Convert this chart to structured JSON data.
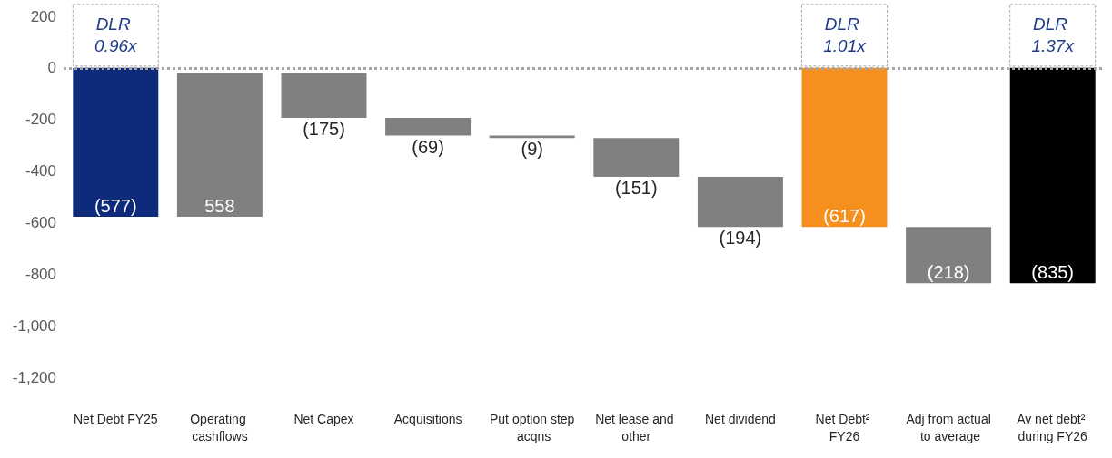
{
  "chart_data": {
    "type": "bar",
    "categories": [
      "Net Debt FY25",
      "Operating cashflows",
      "Net Capex",
      "Acquisitions",
      "Put option step acqns",
      "Net lease and other",
      "Net dividend",
      "Net Debt² FY26",
      "Adj from actual to average",
      "Av net debt² during FY26"
    ],
    "values": [
      -577,
      558,
      -175,
      -69,
      -9,
      -151,
      -194,
      -617,
      -218,
      -835
    ],
    "base": [
      0,
      -577,
      -19,
      -194,
      -263,
      -272,
      -423,
      0,
      -617,
      0
    ],
    "colors": [
      "#0d2b7a",
      "#808080",
      "#808080",
      "#808080",
      "#808080",
      "#808080",
      "#808080",
      "#f5901e",
      "#808080",
      "#000000"
    ],
    "value_labels": [
      "(577)",
      "558",
      "(175)",
      "(69)",
      "(9)",
      "(151)",
      "(194)",
      "(617)",
      "(218)",
      "(835)"
    ],
    "ylim": [
      -1200,
      200
    ],
    "yticks": [
      200,
      0,
      -200,
      -400,
      -600,
      -800,
      {
        "value": -1000,
        "label": "-1,000"
      },
      {
        "value": -1200,
        "label": "-1,200"
      }
    ],
    "ref_lines": [
      {
        "axis": "y",
        "value": 0,
        "color": "#a6a6a6",
        "line_style": "dotted"
      }
    ],
    "annotations": [
      {
        "text": "DLR 0.96x",
        "x": "Net Debt FY25",
        "y": 0
      },
      {
        "text": "DLR 1.01x",
        "x": "Net Debt² FY26",
        "y": 0
      },
      {
        "text": "DLR 1.37x",
        "x": "Av net debt² during FY26",
        "y": 0
      }
    ]
  }
}
